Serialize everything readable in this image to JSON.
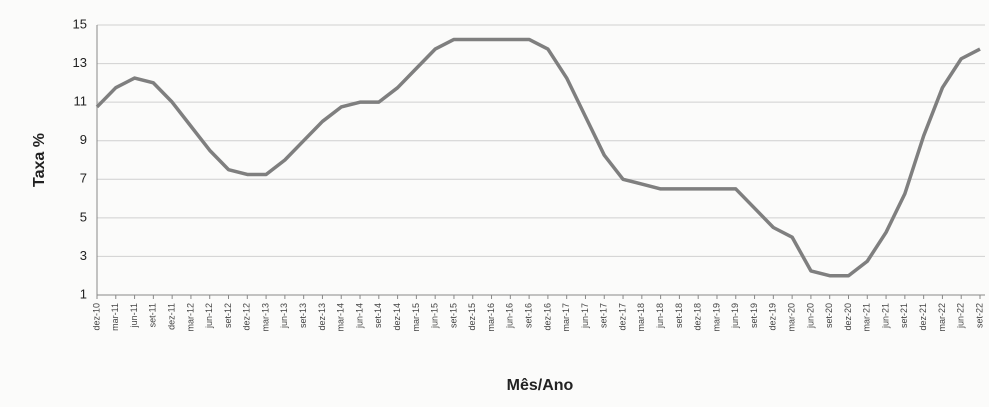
{
  "chart_data": {
    "type": "line",
    "ylabel": "Taxa %",
    "xlabel": "Mês/Ano",
    "categories": [
      "dez-10",
      "mar-11",
      "jun-11",
      "set-11",
      "dez-11",
      "mar-12",
      "jun-12",
      "set-12",
      "dez-12",
      "mar-13",
      "jun-13",
      "set-13",
      "dez-13",
      "mar-14",
      "jun-14",
      "set-14",
      "dez-14",
      "mar-15",
      "jun-15",
      "set-15",
      "dez-15",
      "mar-16",
      "jun-16",
      "set-16",
      "dez-16",
      "mar-17",
      "jun-17",
      "set-17",
      "dez-17",
      "mar-18",
      "jun-18",
      "set-18",
      "dez-18",
      "mar-19",
      "jun-19",
      "set-19",
      "dez-19",
      "mar-20",
      "jun-20",
      "set-20",
      "dez-20",
      "mar-21",
      "jun-21",
      "set-21",
      "dez-21",
      "mar-22",
      "jun-22",
      "set-22"
    ],
    "series": [
      {
        "color": "#7f7f7f",
        "values": [
          10.75,
          11.75,
          12.25,
          12.0,
          11.0,
          9.75,
          8.5,
          7.5,
          7.25,
          7.25,
          8.0,
          9.0,
          10.0,
          10.75,
          11.0,
          11.0,
          11.75,
          12.75,
          13.75,
          14.25,
          14.25,
          14.25,
          14.25,
          14.25,
          13.75,
          12.25,
          10.25,
          8.25,
          7.0,
          6.75,
          6.5,
          6.5,
          6.5,
          6.5,
          6.5,
          5.5,
          4.5,
          4.0,
          2.25,
          2.0,
          2.0,
          2.75,
          4.25,
          6.25,
          9.25,
          11.75,
          13.25,
          13.75
        ]
      }
    ],
    "ylim": [
      1,
      15
    ],
    "yticks": [
      1,
      3,
      5,
      7,
      9,
      11,
      13,
      15
    ],
    "grid": true
  }
}
